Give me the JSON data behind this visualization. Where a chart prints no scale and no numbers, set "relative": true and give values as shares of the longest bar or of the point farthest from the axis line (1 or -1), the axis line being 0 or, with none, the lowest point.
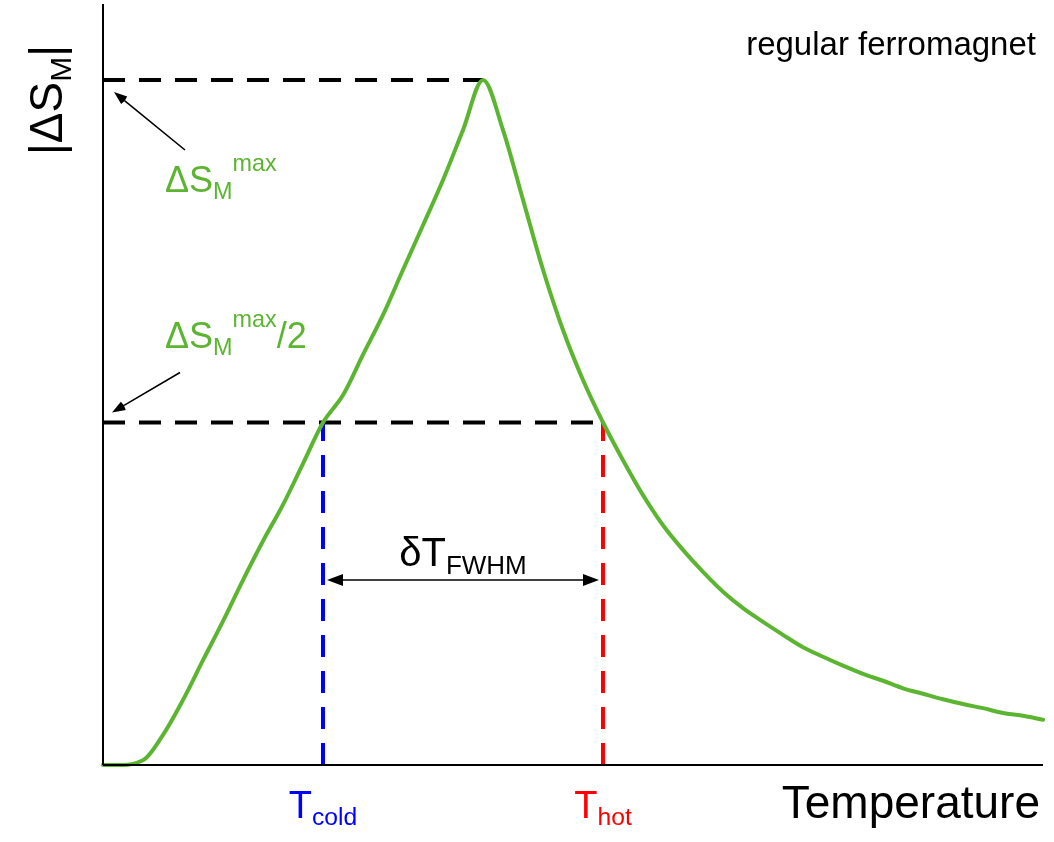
{
  "chart_data": {
    "type": "line",
    "relative": true,
    "xlabel": "Temperature",
    "ylabel": "|ΔS$_{M}$|",
    "categories": [
      null,
      null,
      null,
      null,
      null,
      null,
      null,
      null,
      null,
      null,
      null,
      "T$_{cold}$",
      null,
      null,
      null,
      null,
      null,
      null,
      null,
      null,
      null,
      null,
      null,
      null,
      null,
      "T$_{hot}$",
      null,
      null,
      null,
      null,
      null,
      null,
      null,
      null,
      null,
      null,
      null,
      null,
      null,
      null,
      null,
      null,
      null,
      null,
      null,
      null,
      null,
      null
    ],
    "series": [
      {
        "color": "#5cb531",
        "values": [
          0,
          0,
          0.007,
          0.044,
          0.095,
          0.153,
          0.21,
          0.27,
          0.327,
          0.38,
          0.44,
          0.5,
          0.54,
          0.599,
          0.657,
          0.723,
          0.788,
          0.854,
          0.927,
          1,
          0.927,
          0.825,
          0.723,
          0.635,
          0.562,
          0.5,
          0.445,
          0.394,
          0.35,
          0.314,
          0.282,
          0.253,
          0.229,
          0.209,
          0.19,
          0.172,
          0.158,
          0.145,
          0.133,
          0.123,
          0.112,
          0.104,
          0.096,
          0.089,
          0.083,
          0.076,
          0.072,
          0.066
        ]
      }
    ],
    "ref_lines": [
      {
        "axis": "y",
        "value": 1,
        "label": "ΔS$_{M}$$^{max}$",
        "color": "#000000",
        "line_style": "dashed"
      },
      {
        "axis": "y",
        "value": 0.5,
        "label": "ΔS$_{M}$$^{max}$/2",
        "color": "#000000",
        "line_style": "dashed"
      },
      {
        "axis": "x",
        "value": "T$_{cold}$",
        "color": "#0000ff",
        "line_style": "dashed"
      },
      {
        "axis": "x",
        "value": "T$_{hot}$",
        "color": "#ff0000",
        "line_style": "dashed"
      }
    ],
    "annotations": [
      "regular ferromagnet",
      "δT$_{FWHM}$"
    ],
    "tick_labels": "x"
  }
}
